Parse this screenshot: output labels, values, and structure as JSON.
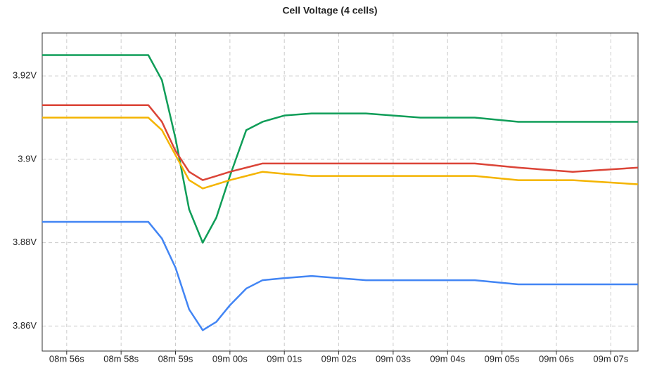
{
  "chart_data": {
    "type": "line",
    "title": "Cell Voltage (4 cells)",
    "x": [
      -0.45,
      1.5,
      1.75,
      2.0,
      2.25,
      2.5,
      2.75,
      3.0,
      3.3,
      3.6,
      4.0,
      4.5,
      5.5,
      6.5,
      7.5,
      8.3,
      9.3,
      10.5
    ],
    "series": [
      {
        "color": "#0f9d58",
        "values": [
          3.925,
          3.925,
          3.919,
          3.905,
          3.888,
          3.88,
          3.886,
          3.896,
          3.907,
          3.909,
          3.9105,
          3.911,
          3.911,
          3.91,
          3.91,
          3.909,
          3.909,
          3.909
        ]
      },
      {
        "color": "#db4437",
        "values": [
          3.913,
          3.913,
          3.909,
          3.902,
          3.897,
          3.895,
          3.896,
          3.897,
          3.898,
          3.899,
          3.899,
          3.899,
          3.899,
          3.899,
          3.899,
          3.898,
          3.897,
          3.898
        ]
      },
      {
        "color": "#f4b400",
        "values": [
          3.91,
          3.91,
          3.907,
          3.901,
          3.895,
          3.893,
          3.894,
          3.895,
          3.896,
          3.897,
          3.8965,
          3.896,
          3.896,
          3.896,
          3.896,
          3.895,
          3.895,
          3.894
        ]
      },
      {
        "color": "#4285f4",
        "values": [
          3.885,
          3.885,
          3.881,
          3.874,
          3.864,
          3.859,
          3.861,
          3.865,
          3.869,
          3.871,
          3.8715,
          3.872,
          3.871,
          3.871,
          3.871,
          3.87,
          3.87,
          3.87
        ]
      }
    ],
    "xlim": [
      -0.45,
      10.5
    ],
    "xticks": [
      {
        "value": 0,
        "label": "08m 56s"
      },
      {
        "value": 1,
        "label": "08m 58s"
      },
      {
        "value": 2,
        "label": "08m 59s"
      },
      {
        "value": 3,
        "label": "09m 00s"
      },
      {
        "value": 4,
        "label": "09m 01s"
      },
      {
        "value": 5,
        "label": "09m 02s"
      },
      {
        "value": 6,
        "label": "09m 03s"
      },
      {
        "value": 7,
        "label": "09m 04s"
      },
      {
        "value": 8,
        "label": "09m 05s"
      },
      {
        "value": 9,
        "label": "09m 06s"
      },
      {
        "value": 10,
        "label": "09m 07s"
      }
    ],
    "ylim": [
      3.854,
      3.9303
    ],
    "yticks": [
      {
        "value": 3.86,
        "label": "3.86V"
      },
      {
        "value": 3.88,
        "label": "3.88V"
      },
      {
        "value": 3.9,
        "label": "3.9V"
      },
      {
        "value": 3.92,
        "label": "3.92V"
      }
    ],
    "grid": true
  }
}
